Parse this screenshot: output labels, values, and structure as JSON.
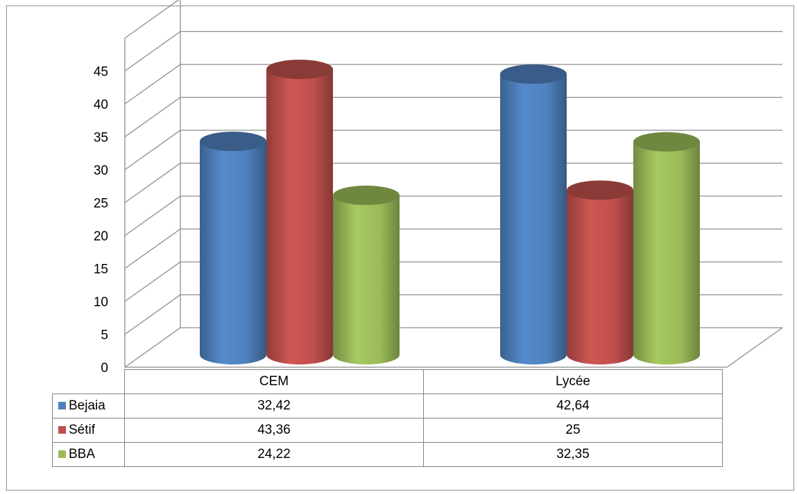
{
  "chart_data": {
    "type": "bar",
    "style": "3d-cylinder",
    "categories": [
      "CEM",
      "Lycée"
    ],
    "series": [
      {
        "name": "Bejaia",
        "values": [
          "32,42",
          "42,64"
        ],
        "numeric": [
          32.42,
          42.64
        ],
        "color": "#4f81bd"
      },
      {
        "name": "Sétif",
        "values": [
          "43,36",
          "25"
        ],
        "numeric": [
          43.36,
          25
        ],
        "color": "#c0504d"
      },
      {
        "name": "BBA",
        "values": [
          "24,22",
          "32,35"
        ],
        "numeric": [
          24.22,
          32.35
        ],
        "color": "#9bbb59"
      }
    ],
    "yticks": [
      "0",
      "5",
      "10",
      "15",
      "20",
      "25",
      "30",
      "35",
      "40",
      "45"
    ],
    "ylim": [
      0,
      45
    ],
    "grid": true,
    "legend": "data-table-below"
  }
}
